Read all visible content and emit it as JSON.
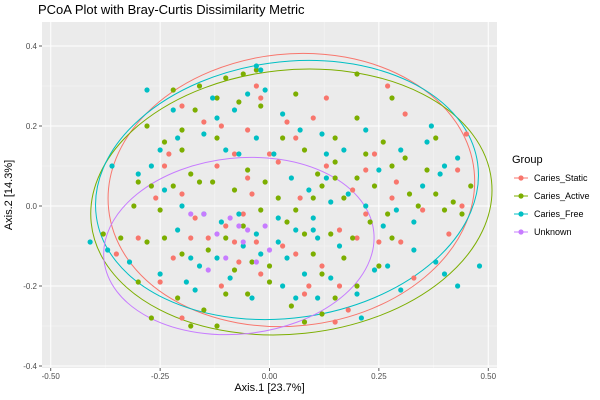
{
  "chart_data": {
    "type": "scatter",
    "title": "PCoA Plot with Bray-Curtis Dissimilarity Metric",
    "xlabel": "Axis.1   [23.7%]",
    "ylabel": "Axis.2   [14.3%]",
    "xlim": [
      -0.52,
      0.52
    ],
    "ylim": [
      -0.405,
      0.46
    ],
    "x_ticks": [
      -0.5,
      -0.25,
      0.0,
      0.25,
      0.5
    ],
    "x_tick_labels": [
      "-0.50",
      "-0.25",
      "0.00",
      "0.25",
      "0.50"
    ],
    "y_ticks": [
      -0.4,
      -0.2,
      0.0,
      0.2,
      0.4
    ],
    "y_tick_labels": [
      "-0.4",
      "-0.2",
      "0.0",
      "0.2",
      "0.4"
    ],
    "grid": true,
    "legend": {
      "title": "Group",
      "position": "right"
    },
    "series": [
      {
        "name": "Caries_Static",
        "color": "#F8766D",
        "ellipse": {
          "cx": 0.05,
          "cy": 0.04,
          "rx": 0.42,
          "ry": 0.34,
          "angle": -6
        },
        "points": [
          [
            -0.03,
            0.3
          ],
          [
            0.22,
            0.09
          ],
          [
            0.28,
            0.02
          ],
          [
            0.35,
            -0.01
          ],
          [
            0.43,
            0.09
          ],
          [
            0.45,
            0.18
          ],
          [
            0.16,
            -0.06
          ],
          [
            0.33,
            -0.18
          ],
          [
            0.04,
            0.21
          ],
          [
            0.24,
            0.13
          ],
          [
            -0.02,
            0.27
          ],
          [
            0.1,
            0.22
          ],
          [
            0.29,
            0.06
          ],
          [
            0.31,
            0.23
          ],
          [
            -0.05,
            0.19
          ],
          [
            0.18,
            -0.26
          ],
          [
            0.25,
            -0.09
          ],
          [
            0.2,
            -0.08
          ],
          [
            0.3,
            -0.09
          ],
          [
            0.12,
            -0.15
          ],
          [
            0.07,
            0.02
          ],
          [
            0.13,
            0.1
          ],
          [
            0.02,
            0.11
          ],
          [
            0.0,
            0.13
          ],
          [
            -0.08,
            0.13
          ],
          [
            -0.11,
            0.2
          ],
          [
            -0.15,
            0.21
          ],
          [
            -0.2,
            0.25
          ],
          [
            -0.23,
            0.13
          ],
          [
            -0.24,
            0.1
          ],
          [
            -0.12,
            0.1
          ],
          [
            -0.05,
            0.07
          ],
          [
            -0.04,
            0.03
          ],
          [
            -0.06,
            -0.02
          ],
          [
            -0.1,
            -0.05
          ],
          [
            -0.14,
            -0.08
          ],
          [
            -0.18,
            -0.08
          ],
          [
            -0.22,
            -0.13
          ],
          [
            -0.25,
            -0.19
          ],
          [
            -0.2,
            -0.28
          ],
          [
            -0.11,
            -0.2
          ],
          [
            -0.07,
            -0.14
          ],
          [
            -0.03,
            -0.09
          ],
          [
            0.06,
            -0.12
          ],
          [
            0.09,
            -0.2
          ],
          [
            0.16,
            -0.2
          ],
          [
            0.15,
            -0.29
          ],
          [
            0.08,
            -0.22
          ],
          [
            0.03,
            -0.1
          ],
          [
            -0.02,
            -0.17
          ],
          [
            -0.08,
            -0.09
          ],
          [
            -0.17,
            -0.03
          ],
          [
            -0.2,
            0.03
          ],
          [
            -0.26,
            0.02
          ],
          [
            -0.3,
            -0.08
          ],
          [
            -0.35,
            -0.12
          ],
          [
            0.41,
            -0.07
          ],
          [
            0.44,
            0.0
          ],
          [
            0.19,
            0.04
          ],
          [
            0.22,
            -0.02
          ],
          [
            0.06,
            0.17
          ],
          [
            0.13,
            0.27
          ],
          [
            0.27,
            0.3
          ]
        ]
      },
      {
        "name": "Caries_Active",
        "color": "#7CAE00",
        "ellipse": {
          "cx": 0.05,
          "cy": 0.01,
          "rx": 0.46,
          "ry": 0.33,
          "angle": -6
        },
        "points": [
          [
            0.28,
            0.27
          ],
          [
            0.15,
            0.17
          ],
          [
            0.22,
            0.13
          ],
          [
            0.2,
            0.22
          ],
          [
            0.34,
            0.0
          ],
          [
            0.38,
            0.03
          ],
          [
            0.4,
            -0.01
          ],
          [
            0.38,
            0.17
          ],
          [
            0.44,
            -0.02
          ],
          [
            0.46,
            0.05
          ],
          [
            0.42,
            0.01
          ],
          [
            0.28,
            -0.08
          ],
          [
            0.25,
            -0.15
          ],
          [
            0.2,
            -0.2
          ],
          [
            0.15,
            -0.23
          ],
          [
            0.1,
            -0.12
          ],
          [
            0.12,
            -0.17
          ],
          [
            0.05,
            -0.25
          ],
          [
            0.0,
            -0.19
          ],
          [
            -0.05,
            -0.22
          ],
          [
            -0.1,
            -0.22
          ],
          [
            -0.15,
            -0.26
          ],
          [
            -0.18,
            -0.3
          ],
          [
            -0.21,
            -0.23
          ],
          [
            -0.27,
            -0.28
          ],
          [
            -0.3,
            -0.19
          ],
          [
            -0.34,
            -0.08
          ],
          [
            -0.38,
            -0.07
          ],
          [
            -0.31,
            0.0
          ],
          [
            -0.27,
            0.05
          ],
          [
            -0.25,
            -0.01
          ],
          [
            -0.22,
            0.05
          ],
          [
            -0.18,
            0.08
          ],
          [
            -0.16,
            0.06
          ],
          [
            -0.13,
            0.06
          ],
          [
            -0.08,
            0.04
          ],
          [
            -0.05,
            0.09
          ],
          [
            -0.01,
            0.06
          ],
          [
            0.02,
            0.02
          ],
          [
            0.06,
            -0.01
          ],
          [
            0.1,
            0.02
          ],
          [
            0.12,
            0.05
          ],
          [
            0.17,
            0.02
          ],
          [
            0.2,
            0.07
          ],
          [
            0.24,
            0.05
          ],
          [
            0.28,
            0.1
          ],
          [
            0.32,
            0.03
          ],
          [
            0.27,
            -0.02
          ],
          [
            0.23,
            -0.04
          ],
          [
            0.19,
            -0.08
          ],
          [
            0.14,
            -0.07
          ],
          [
            0.08,
            -0.07
          ],
          [
            0.04,
            -0.04
          ],
          [
            -0.02,
            -0.01
          ],
          [
            -0.06,
            -0.05
          ],
          [
            -0.1,
            -0.08
          ],
          [
            -0.14,
            -0.11
          ],
          [
            -0.2,
            -0.12
          ],
          [
            -0.24,
            -0.08
          ],
          [
            -0.28,
            -0.09
          ],
          [
            -0.24,
            0.16
          ],
          [
            -0.2,
            0.19
          ],
          [
            -0.17,
            0.24
          ],
          [
            -0.12,
            0.17
          ],
          [
            -0.07,
            0.26
          ],
          [
            -0.02,
            0.25
          ],
          [
            0.03,
            0.17
          ],
          [
            0.08,
            0.14
          ],
          [
            0.11,
            0.08
          ],
          [
            0.15,
            0.11
          ],
          [
            0.0,
            -0.15
          ],
          [
            -0.04,
            -0.14
          ],
          [
            -0.08,
            -0.16
          ],
          [
            0.12,
            -0.27
          ],
          [
            0.17,
            -0.13
          ],
          [
            0.08,
            -0.29
          ],
          [
            -0.12,
            -0.3
          ],
          [
            -0.3,
            0.06
          ],
          [
            -0.28,
            0.2
          ],
          [
            -0.22,
            0.29
          ],
          [
            -0.16,
            0.3
          ],
          [
            -0.1,
            0.32
          ],
          [
            -0.06,
            0.33
          ],
          [
            -0.03,
            0.34
          ],
          [
            0.15,
            0.07
          ],
          [
            0.26,
            0.16
          ],
          [
            0.31,
            0.12
          ],
          [
            0.36,
            0.09
          ],
          [
            -0.2,
            0.14
          ],
          [
            0.06,
            0.28
          ],
          [
            0.2,
            0.33
          ],
          [
            -0.12,
            0.27
          ]
        ]
      },
      {
        "name": "Caries_Free",
        "color": "#00BFC4",
        "ellipse": {
          "cx": 0.04,
          "cy": 0.04,
          "rx": 0.44,
          "ry": 0.32,
          "angle": -8
        },
        "points": [
          [
            -0.28,
            0.29
          ],
          [
            -0.03,
            0.35
          ],
          [
            -0.02,
            0.34
          ],
          [
            0.48,
            -0.15
          ],
          [
            0.43,
            0.12
          ],
          [
            0.37,
            0.2
          ],
          [
            0.4,
            0.1
          ],
          [
            0.36,
            0.16
          ],
          [
            0.4,
            -0.17
          ],
          [
            0.43,
            -0.2
          ],
          [
            0.3,
            -0.21
          ],
          [
            0.24,
            -0.16
          ],
          [
            0.21,
            -0.28
          ],
          [
            0.14,
            -0.18
          ],
          [
            0.11,
            -0.23
          ],
          [
            0.08,
            -0.17
          ],
          [
            0.03,
            -0.2
          ],
          [
            -0.04,
            -0.23
          ],
          [
            -0.09,
            -0.18
          ],
          [
            -0.17,
            -0.21
          ],
          [
            -0.25,
            -0.17
          ],
          [
            -0.32,
            -0.14
          ],
          [
            -0.37,
            -0.11
          ],
          [
            -0.41,
            -0.09
          ],
          [
            -0.36,
            0.1
          ],
          [
            -0.3,
            0.08
          ],
          [
            -0.25,
            0.14
          ],
          [
            -0.21,
            0.17
          ],
          [
            -0.15,
            0.18
          ],
          [
            -0.12,
            0.22
          ],
          [
            -0.08,
            0.24
          ],
          [
            -0.05,
            0.28
          ],
          [
            -0.01,
            0.29
          ],
          [
            0.03,
            0.23
          ],
          [
            0.07,
            0.19
          ],
          [
            0.12,
            0.18
          ],
          [
            0.17,
            0.14
          ],
          [
            0.22,
            0.19
          ],
          [
            0.25,
            0.09
          ],
          [
            0.3,
            0.14
          ],
          [
            0.35,
            0.05
          ],
          [
            0.39,
            0.08
          ],
          [
            0.33,
            -0.04
          ],
          [
            0.29,
            -0.01
          ],
          [
            0.26,
            -0.05
          ],
          [
            0.22,
            0.0
          ],
          [
            0.18,
            0.03
          ],
          [
            0.14,
            0.01
          ],
          [
            0.1,
            -0.03
          ],
          [
            0.06,
            -0.06
          ],
          [
            0.02,
            -0.03
          ],
          [
            -0.03,
            -0.07
          ],
          [
            -0.07,
            -0.02
          ],
          [
            -0.11,
            -0.04
          ],
          [
            -0.15,
            -0.02
          ],
          [
            -0.2,
            0.0
          ],
          [
            -0.24,
            0.04
          ],
          [
            -0.27,
            0.1
          ],
          [
            -0.22,
            0.24
          ],
          [
            -0.13,
            0.27
          ],
          [
            -0.07,
            0.13
          ],
          [
            -0.03,
            0.17
          ],
          [
            0.01,
            0.13
          ],
          [
            0.05,
            0.07
          ],
          [
            0.09,
            0.04
          ],
          [
            0.13,
            0.13
          ],
          [
            0.02,
            -0.09
          ],
          [
            -0.02,
            -0.12
          ],
          [
            -0.06,
            -0.1
          ],
          [
            -0.12,
            -0.13
          ],
          [
            -0.16,
            -0.15
          ],
          [
            -0.19,
            -0.19
          ],
          [
            0.04,
            -0.13
          ],
          [
            0.06,
            -0.23
          ],
          [
            0.11,
            -0.08
          ],
          [
            0.16,
            -0.1
          ],
          [
            0.1,
            -0.06
          ],
          [
            -0.21,
            -0.06
          ],
          [
            0.2,
            -0.22
          ],
          [
            0.27,
            -0.15
          ],
          [
            0.33,
            -0.11
          ],
          [
            0.38,
            -0.14
          ],
          [
            0.13,
            0.07
          ],
          [
            -0.18,
            -0.13
          ],
          [
            -0.1,
            0.14
          ]
        ]
      },
      {
        "name": "Unknown",
        "color": "#C77CFF",
        "ellipse": {
          "cx": -0.07,
          "cy": -0.1,
          "rx": 0.31,
          "ry": 0.22,
          "angle": -6
        },
        "points": [
          [
            -0.18,
            -0.02
          ],
          [
            -0.15,
            -0.02
          ],
          [
            -0.12,
            -0.07
          ],
          [
            -0.09,
            -0.03
          ],
          [
            -0.06,
            -0.09
          ],
          [
            -0.01,
            -0.05
          ],
          [
            0.0,
            -0.11
          ],
          [
            -0.03,
            -0.14
          ],
          [
            -0.1,
            -0.13
          ],
          [
            -0.14,
            -0.16
          ],
          [
            -0.07,
            -0.05
          ],
          [
            -0.05,
            -0.06
          ]
        ]
      }
    ]
  }
}
